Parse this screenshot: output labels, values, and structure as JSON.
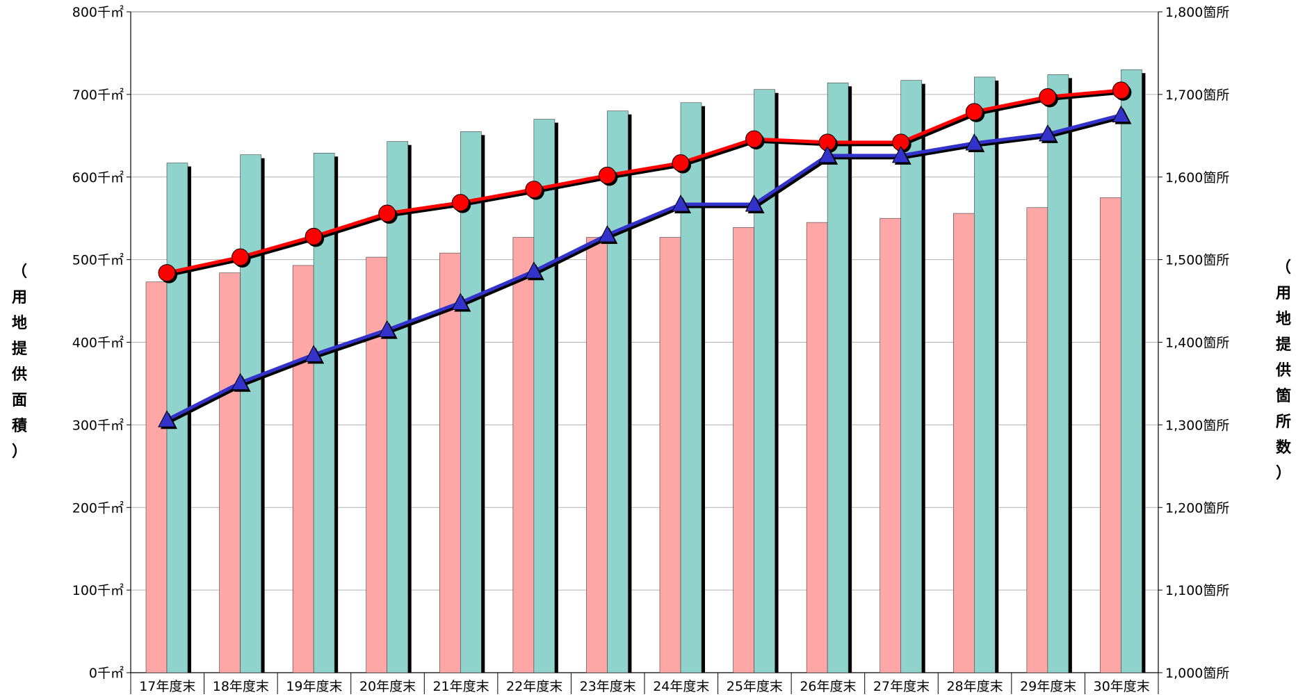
{
  "chart_data": {
    "type": "bar",
    "categories": [
      "17年度末",
      "18年度末",
      "19年度末",
      "20年度末",
      "21年度末",
      "22年度末",
      "23年度末",
      "24年度末",
      "25年度末",
      "26年度末",
      "27年度末",
      "28年度末",
      "29年度末",
      "30年度末"
    ],
    "y_left": {
      "label_chars": [
        "（",
        "用",
        "地",
        "提",
        "供",
        "面",
        "積",
        "）"
      ],
      "range": [
        0,
        800
      ],
      "ticks": [
        0,
        100,
        200,
        300,
        400,
        500,
        600,
        700,
        800
      ],
      "tick_labels": [
        "0千㎡",
        "100千㎡",
        "200千㎡",
        "300千㎡",
        "400千㎡",
        "500千㎡",
        "600千㎡",
        "700千㎡",
        "800千㎡"
      ]
    },
    "y_right": {
      "label_chars": [
        "（",
        "用",
        "地",
        "提",
        "供",
        "箇",
        "所",
        "数",
        "）"
      ],
      "range": [
        1000,
        1800
      ],
      "ticks": [
        1000,
        1100,
        1200,
        1300,
        1400,
        1500,
        1600,
        1700,
        1800
      ],
      "tick_labels": [
        "1,000箇所",
        "1,100箇所",
        "1,200箇所",
        "1,300箇所",
        "1,400箇所",
        "1,500箇所",
        "1,600箇所",
        "1,700箇所",
        "1,800箇所"
      ]
    },
    "series": [
      {
        "type": "bar",
        "axis": "left",
        "color": "#ffa6a6",
        "values": [
          473,
          484,
          493,
          503,
          508,
          527,
          527,
          527,
          539,
          545,
          550,
          556,
          563,
          575
        ]
      },
      {
        "type": "bar",
        "axis": "left",
        "color": "#8fd3cc",
        "values": [
          617,
          627,
          629,
          643,
          655,
          670,
          680,
          690,
          706,
          714,
          717,
          721,
          724,
          730
        ]
      },
      {
        "type": "line",
        "axis": "right",
        "color": "#ff0000",
        "marker": "circle",
        "values": [
          1484,
          1503,
          1528,
          1556,
          1569,
          1585,
          1602,
          1617,
          1646,
          1642,
          1642,
          1679,
          1697,
          1705
        ]
      },
      {
        "type": "line",
        "axis": "right",
        "color": "#3333cc",
        "marker": "triangle",
        "values": [
          1306,
          1351,
          1385,
          1415,
          1448,
          1486,
          1530,
          1567,
          1567,
          1626,
          1626,
          1641,
          1652,
          1675
        ]
      }
    ],
    "grid": "horizontal",
    "legend": "none"
  }
}
